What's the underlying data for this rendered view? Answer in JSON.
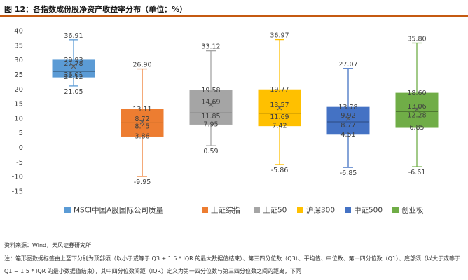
{
  "header": {
    "title": "图 12：各指数成份股净资产收益率分布（单位：%）"
  },
  "chart_data": {
    "type": "box",
    "ylim": [
      -15,
      40
    ],
    "yticks": [
      40,
      35,
      30,
      25,
      20,
      15,
      10,
      5,
      0,
      -5,
      -10,
      -15
    ],
    "grid": false,
    "legend_position": "bottom",
    "series": [
      {
        "name": "MSCI中国A股国际公司质量",
        "color": "#5b9bd5",
        "max": 36.91,
        "q3": 29.93,
        "mean": 27.78,
        "median": 26.01,
        "q1": 24.12,
        "min": 21.05,
        "labels": [
          "36.91",
          "29.93",
          "27.78",
          "26.01",
          "24.12",
          "21.05"
        ]
      },
      {
        "name": "上证综指",
        "color": "#ed7d31",
        "max": 26.9,
        "q3": 13.11,
        "mean": 8.72,
        "median": 8.45,
        "q1": 3.86,
        "min": -9.95,
        "labels": [
          "26.90",
          "13.11",
          "8.72",
          "8.45",
          "3.86",
          "-9.95"
        ]
      },
      {
        "name": "上证50",
        "color": "#a5a5a5",
        "max": 33.12,
        "q3": 19.58,
        "mean": 14.69,
        "median": 11.85,
        "q1": 7.95,
        "min": 0.59,
        "labels": [
          "33.12",
          "19.58",
          "14.69",
          "11.85",
          "7.95",
          "0.59"
        ]
      },
      {
        "name": "沪深300",
        "color": "#ffc000",
        "max": 36.97,
        "q3": 19.77,
        "mean": 13.57,
        "median": 11.69,
        "q1": 7.42,
        "min": -5.86,
        "labels": [
          "36.97",
          "19.77",
          "13.57",
          "11.69",
          "7.42",
          "-5.86"
        ]
      },
      {
        "name": "中证500",
        "color": "#4472c4",
        "max": 27.07,
        "q3": 13.78,
        "mean": 9.92,
        "median": 8.77,
        "q1": 4.51,
        "min": -6.85,
        "labels": [
          "27.07",
          "13.78",
          "9.92",
          "8.77",
          "4.51",
          "-6.85"
        ]
      },
      {
        "name": "创业板",
        "color": "#70ad47",
        "max": 35.8,
        "q3": 18.6,
        "mean": 13.06,
        "median": 12.28,
        "q1": 6.85,
        "min": -6.61,
        "labels": [
          "35.80",
          "18.60",
          "13.06",
          "12.28",
          "6.85",
          "-6.61"
        ]
      }
    ]
  },
  "footer": {
    "source": "资料来源：Wind，天风证券研究所",
    "note": "注：箱形图数据标签由上至下分别为顶部须（以小于或等于 Q3 + 1.5 * IQR 的最大数据值结束）、第三四分位数（Q3）、平均值、中位数、第一四分位数（Q1）、底部须（以大于或等于 Q1 − 1.5 * IQR 的最小数据值结束），其中四分位数间距（IQR）定义为第一四分位数与第三四分位数之间的距离，下同"
  }
}
